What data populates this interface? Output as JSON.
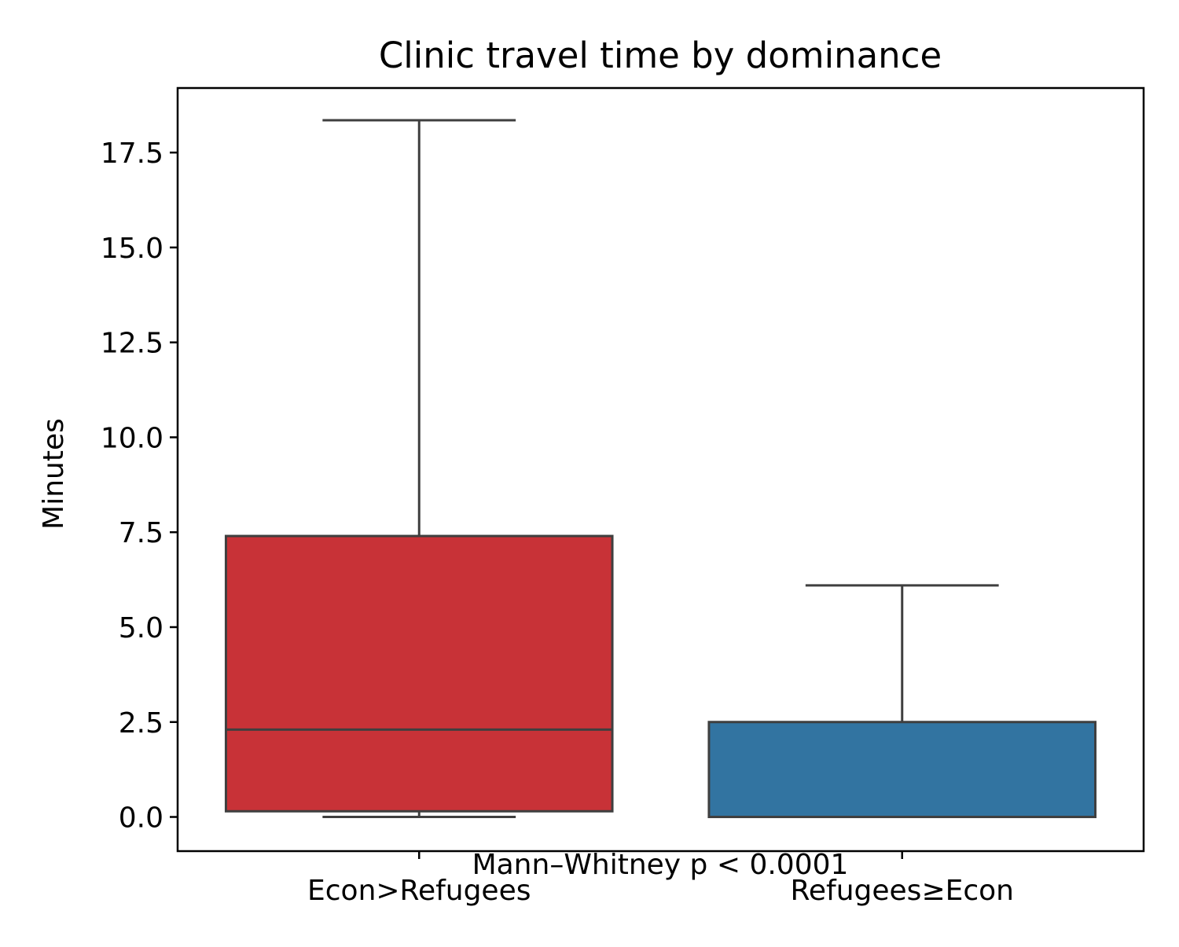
{
  "chart_data": {
    "type": "box",
    "title": "Clinic travel time by dominance",
    "xlabel": "",
    "ylabel": "Minutes",
    "ylim": [
      -0.9,
      19.2
    ],
    "yticks": [
      0.0,
      2.5,
      5.0,
      7.5,
      10.0,
      12.5,
      15.0,
      17.5
    ],
    "ytick_labels": [
      "0.0",
      "2.5",
      "5.0",
      "7.5",
      "10.0",
      "12.5",
      "15.0",
      "17.5"
    ],
    "categories": [
      "Econ>Refugees",
      "Refugees≥Econ"
    ],
    "boxes": [
      {
        "category": "Econ>Refugees",
        "whisker_low": 0.0,
        "q1": 0.15,
        "median": 2.3,
        "q3": 7.4,
        "whisker_high": 18.35,
        "color": "#c83237"
      },
      {
        "category": "Refugees≥Econ",
        "whisker_low": 0.0,
        "q1": 0.0,
        "median": 0.0,
        "q3": 2.5,
        "whisker_high": 6.1,
        "color": "#3274a1"
      }
    ],
    "annotation": "Mann–Whitney p < 0.0001",
    "grid": false,
    "legend": "none",
    "line_color": "#3f3f3f"
  }
}
